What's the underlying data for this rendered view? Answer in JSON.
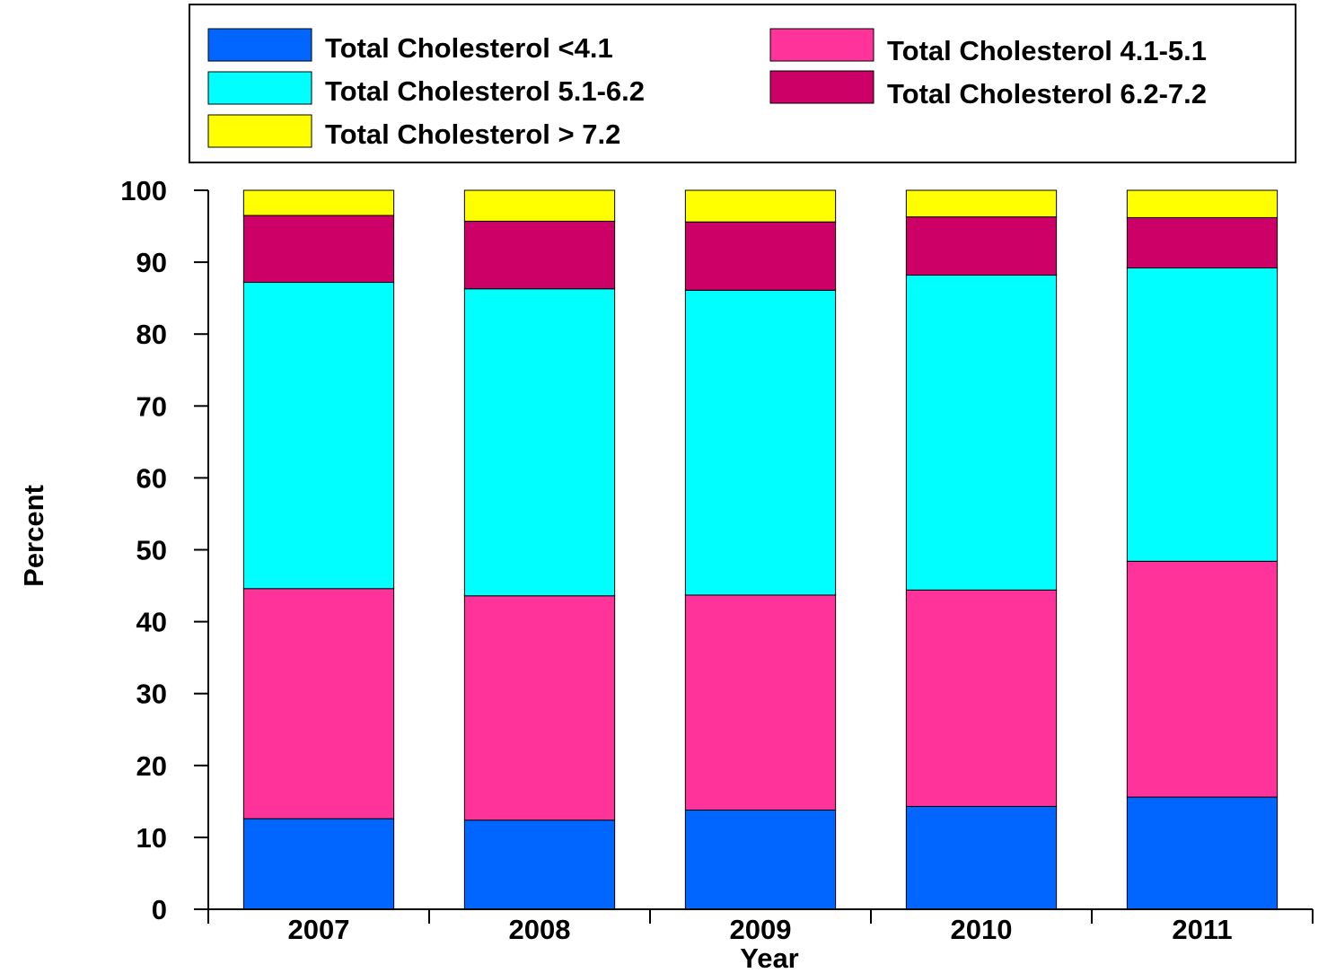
{
  "chart_data": {
    "type": "bar",
    "stacked": true,
    "title": "",
    "xlabel": "Year",
    "ylabel": "Percent",
    "ylim": [
      0,
      100
    ],
    "yticks": [
      0,
      10,
      20,
      30,
      40,
      50,
      60,
      70,
      80,
      90,
      100
    ],
    "grid": false,
    "legend_position": "top",
    "categories": [
      "2007",
      "2008",
      "2009",
      "2010",
      "2011"
    ],
    "series": [
      {
        "name": "Total Cholesterol <4.1",
        "color": "#0066ff",
        "values": [
          12.6,
          12.4,
          13.8,
          14.3,
          15.6
        ]
      },
      {
        "name": "Total Cholesterol 4.1-5.1",
        "color": "#ff3399",
        "values": [
          32.0,
          31.2,
          29.9,
          30.1,
          32.8
        ]
      },
      {
        "name": "Total Cholesterol 5.1-6.2",
        "color": "#00ffff",
        "values": [
          42.6,
          42.7,
          42.4,
          43.8,
          40.8
        ]
      },
      {
        "name": "Total Cholesterol 6.2-7.2",
        "color": "#cc0066",
        "values": [
          9.3,
          9.4,
          9.5,
          8.1,
          7.0
        ]
      },
      {
        "name": "Total Cholesterol > 7.2",
        "color": "#ffff00",
        "values": [
          3.5,
          4.3,
          4.4,
          3.7,
          3.8
        ]
      }
    ]
  }
}
